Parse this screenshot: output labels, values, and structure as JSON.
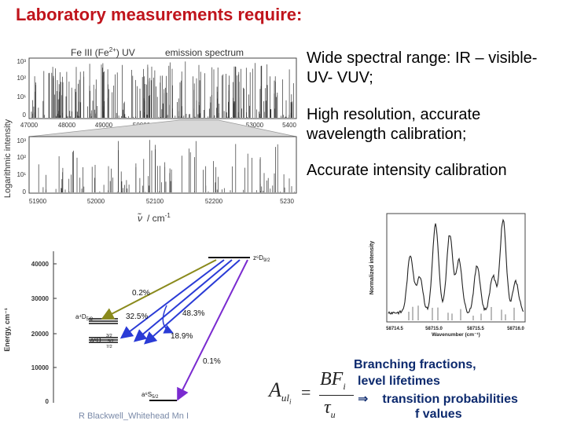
{
  "title": "Laboratory measurements require:",
  "bullets": [
    "Wide spectral range: IR – visible- UV- VUV;",
    "High resolution, accurate wavelength calibration;",
    "Accurate intensity calibration"
  ],
  "spectrum": {
    "title_ion": "Fe III (Fe",
    "title_charge": "2+",
    "title_end": ") UV",
    "title_right": "emission spectrum",
    "y_axis_label": "Logarithmic intensity",
    "top_x_ticks": [
      "47000",
      "48000",
      "49000",
      "50000",
      "51000",
      "52000",
      "53000",
      "5400"
    ],
    "bottom_x_ticks": [
      "51900",
      "52000",
      "52100",
      "52200",
      "5230"
    ],
    "y_ticks": [
      "10³",
      "10²",
      "10¹",
      "0"
    ],
    "x_axis_symbol": "ν̃",
    "x_axis_unit": "/ cm",
    "x_axis_unit_exp": "-1"
  },
  "energy_diagram": {
    "y_axis_label": "Energy, cm⁻¹",
    "y_ticks": [
      "40000",
      "30000",
      "20000",
      "10000",
      "0"
    ],
    "upper_level": "z⁶D",
    "upper_sub": "9/2",
    "level_a4D": "a⁴D",
    "level_a4D_sub": "5/2",
    "level_a6D": "a⁶D",
    "level_a6D_subs": [
      "3/2",
      "5/2",
      "7/2"
    ],
    "ground_level": "a⁶S",
    "ground_sub": "5/2",
    "fractions": [
      "0.2%",
      "32.5%",
      "48.3%",
      "18.9%",
      "0.1%"
    ],
    "colors": {
      "olive": "#8a8a1c",
      "blue": "#2a3bd6",
      "purple": "#7a2ad0"
    }
  },
  "small_spectrum": {
    "y_axis_label": "Normalized intensity",
    "x_axis_label": "Wavenumber (cm⁻¹)",
    "x_ticks": [
      "58714.5",
      "58715.0",
      "58715.5",
      "58716.0"
    ]
  },
  "formula": {
    "lhs": "A",
    "lhs_sub": "ul",
    "lhs_subsub": "i",
    "num": "BF",
    "num_sub": "i",
    "den": "τ",
    "den_sub": "u"
  },
  "branching": {
    "line1": "Branching fractions,",
    "line2": "level lifetimes",
    "arrow": "⇒",
    "line3": "transition probabilities",
    "line4": "f values"
  },
  "credit": "R Blackwell_Whitehead  Mn I"
}
